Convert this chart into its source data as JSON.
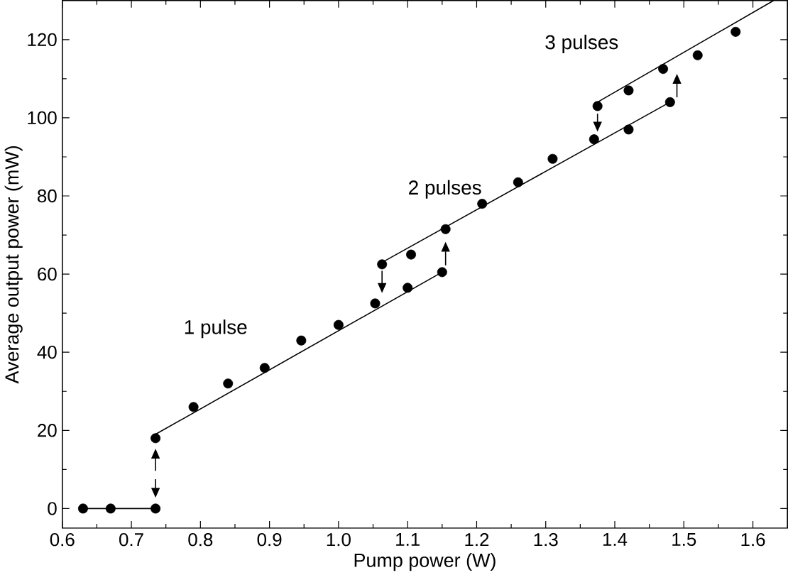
{
  "chart_data": {
    "type": "scatter",
    "xlabel": "Pump power (W)",
    "ylabel": "Average output power (mW)",
    "xlim": [
      0.6,
      1.65
    ],
    "ylim": [
      -5,
      130
    ],
    "xticks": [
      {
        "value": 0.6,
        "label": "0.6"
      },
      {
        "value": 0.7,
        "label": "0.7"
      },
      {
        "value": 0.8,
        "label": "0.8"
      },
      {
        "value": 0.9,
        "label": "0.9"
      },
      {
        "value": 1.0,
        "label": "1.0"
      },
      {
        "value": 1.1,
        "label": "1.1"
      },
      {
        "value": 1.2,
        "label": "1.2"
      },
      {
        "value": 1.3,
        "label": "1.3"
      },
      {
        "value": 1.4,
        "label": "1.4"
      },
      {
        "value": 1.5,
        "label": "1.5"
      },
      {
        "value": 1.6,
        "label": "1.6"
      }
    ],
    "yticks": [
      0,
      20,
      40,
      60,
      80,
      100,
      120
    ],
    "grid": false,
    "series": [
      {
        "marker": "circle",
        "color": "#000000",
        "x": [
          0.63,
          0.67,
          0.735,
          0.735,
          0.79,
          0.84,
          0.893,
          0.946,
          1.0,
          1.053,
          1.063,
          1.1,
          1.105,
          1.15,
          1.155,
          1.208,
          1.26,
          1.31,
          1.37,
          1.375,
          1.42,
          1.42,
          1.47,
          1.48,
          1.52,
          1.575
        ],
        "values": [
          0,
          0,
          0,
          18,
          26,
          32,
          36,
          43,
          47,
          52.5,
          62.5,
          56.5,
          65,
          60.5,
          71.5,
          78,
          83.5,
          89.5,
          94.5,
          103,
          97,
          107,
          112.5,
          104,
          116,
          122
        ]
      },
      {
        "type": "line",
        "marker": "none",
        "color": "#000000",
        "x": [
          0.63,
          0.735
        ],
        "values": [
          0,
          0
        ]
      },
      {
        "type": "line",
        "marker": "none",
        "color": "#000000",
        "x": [
          0.735,
          1.15
        ],
        "values": [
          19,
          60.5
        ]
      },
      {
        "type": "line",
        "marker": "none",
        "color": "#000000",
        "x": [
          1.063,
          1.48
        ],
        "values": [
          63,
          104
        ]
      },
      {
        "type": "line",
        "marker": "none",
        "color": "#000000",
        "x": [
          1.375,
          1.63
        ],
        "values": [
          104,
          130
        ]
      }
    ],
    "annotations": [
      "1 pulse",
      "2 pulses",
      "3 pulses"
    ]
  }
}
